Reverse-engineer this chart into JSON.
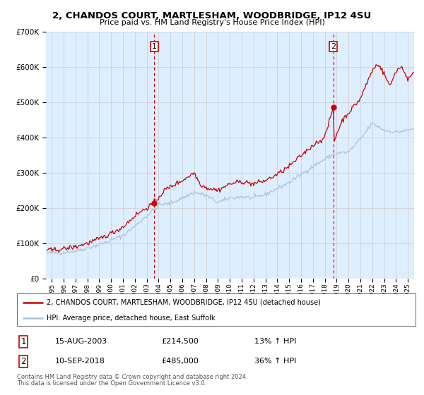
{
  "title": "2, CHANDOS COURT, MARTLESHAM, WOODBRIDGE, IP12 4SU",
  "subtitle": "Price paid vs. HM Land Registry's House Price Index (HPI)",
  "legend_line1": "2, CHANDOS COURT, MARTLESHAM, WOODBRIDGE, IP12 4SU (detached house)",
  "legend_line2": "HPI: Average price, detached house, East Suffolk",
  "footnote1": "Contains HM Land Registry data © Crown copyright and database right 2024.",
  "footnote2": "This data is licensed under the Open Government Licence v3.0.",
  "table_row1": [
    "1",
    "15-AUG-2003",
    "£214,500",
    "13% ↑ HPI"
  ],
  "table_row2": [
    "2",
    "10-SEP-2018",
    "£485,000",
    "36% ↑ HPI"
  ],
  "sale1_date": 2003.62,
  "sale1_price": 214500,
  "sale2_date": 2018.71,
  "sale2_price": 485000,
  "hpi_color": "#aac4e0",
  "sale_color": "#cc0000",
  "vline_color": "#cc0000",
  "grid_color": "#cccccc",
  "background_color": "#ffffff",
  "plot_bg": "#ddeeff",
  "ylim": [
    0,
    700000
  ],
  "xlim_start": 1994.5,
  "xlim_end": 2025.5,
  "hpi_anchors_t": [
    1995.0,
    1996.0,
    1997.0,
    1998.0,
    1999.0,
    2000.0,
    2001.0,
    2002.0,
    2003.0,
    2003.62,
    2004.0,
    2005.0,
    2006.0,
    2007.0,
    2008.0,
    2009.0,
    2010.0,
    2011.0,
    2012.0,
    2013.0,
    2014.0,
    2015.0,
    2016.0,
    2017.0,
    2018.0,
    2018.71,
    2019.0,
    2020.0,
    2021.0,
    2022.0,
    2023.0,
    2024.0,
    2025.0,
    2025.5
  ],
  "hpi_anchors_v": [
    72000,
    74000,
    78000,
    86000,
    96000,
    108000,
    122000,
    148000,
    178000,
    195000,
    208000,
    213000,
    228000,
    245000,
    235000,
    215000,
    228000,
    232000,
    228000,
    238000,
    255000,
    272000,
    295000,
    318000,
    338000,
    352000,
    355000,
    358000,
    395000,
    440000,
    420000,
    415000,
    420000,
    425000
  ],
  "red_anchors_t": [
    1995.0,
    1996.0,
    1997.0,
    1998.0,
    1999.0,
    2000.0,
    2001.0,
    2002.0,
    2003.0,
    2003.62,
    2004.5,
    2005.0,
    2006.0,
    2007.0,
    2007.5,
    2008.0,
    2009.0,
    2010.0,
    2011.0,
    2012.0,
    2013.0,
    2014.0,
    2015.0,
    2016.0,
    2017.0,
    2018.0,
    2018.71,
    2018.8,
    2019.0,
    2019.5,
    2020.0,
    2021.0,
    2022.0,
    2022.5,
    2023.0,
    2023.5,
    2024.0,
    2024.5,
    2025.0,
    2025.5
  ],
  "red_anchors_v": [
    80000,
    84000,
    90000,
    100000,
    112000,
    128000,
    146000,
    178000,
    200000,
    214500,
    250000,
    260000,
    278000,
    300000,
    268000,
    258000,
    250000,
    268000,
    275000,
    268000,
    278000,
    295000,
    318000,
    348000,
    378000,
    400000,
    485000,
    390000,
    410000,
    450000,
    470000,
    510000,
    590000,
    610000,
    580000,
    545000,
    590000,
    600000,
    565000,
    580000
  ]
}
